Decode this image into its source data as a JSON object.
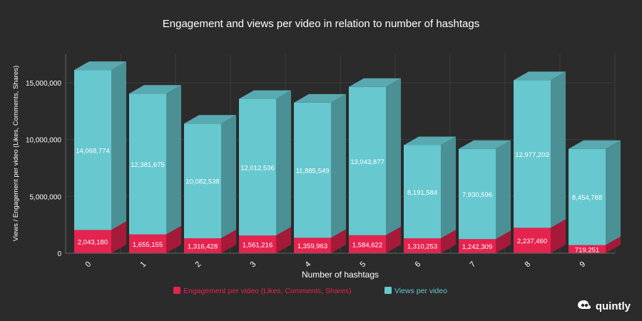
{
  "brand": {
    "name": "quintly",
    "icon": "quintly-logo-icon"
  },
  "colors": {
    "background": "#2b2b2b",
    "engagement": "#e5234f",
    "views": "#67c8cf",
    "text": "#ffffff",
    "grid": "#3d3d3d"
  },
  "chart_data": {
    "type": "bar",
    "stacked": true,
    "style": "3d",
    "title": "Engagement and views per video in relation to number of hashtags",
    "xlabel": "Number of hashtags",
    "ylabel": "Views / Engagement per video (Likes, Comments, Shares)",
    "categories": [
      "0",
      "1",
      "2",
      "3",
      "4",
      "5",
      "6",
      "7",
      "8",
      "9"
    ],
    "ylim": [
      0,
      17500000
    ],
    "yticks": [
      0,
      5000000,
      10000000,
      15000000
    ],
    "ytick_labels": [
      "0",
      "5,000,000",
      "10,000,000",
      "15,000,000"
    ],
    "grid": true,
    "legend_position": "bottom",
    "series": [
      {
        "name": "Engagement per video (Likes, Comments, Shares)",
        "color": "#e5234f",
        "values": [
          2043180,
          1655155,
          1316428,
          1561216,
          1359963,
          1584622,
          1310253,
          1242309,
          2237460,
          719251
        ],
        "labels": [
          "2,043,180",
          "1,655,155",
          "1,316,428",
          "1,561,216",
          "1,359,963",
          "1,584,622",
          "1,310,253",
          "1,242,309",
          "2,237,460",
          "719,251"
        ]
      },
      {
        "name": "Views per video",
        "color": "#67c8cf",
        "values": [
          14068774,
          12381675,
          10082538,
          12012536,
          11885549,
          13043877,
          8191584,
          7930596,
          12977203,
          8454788
        ],
        "labels": [
          "14,068,774",
          "12,381,675",
          "10,082,538",
          "12,012,536",
          "11,885,549",
          "13,043,877",
          "8,191,584",
          "7,930,596",
          "12,977,203",
          "8,454,788"
        ]
      }
    ]
  }
}
